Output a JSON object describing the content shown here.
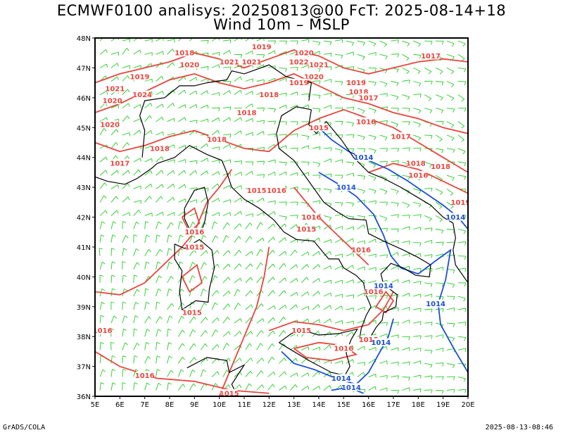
{
  "title_line1": "ECMWF0100 analisys: 20250813@00 FcT: 2025-08-14+18",
  "title_line2": "Wind 10m – MSLP",
  "footer_left": "GrADS/COLA",
  "footer_right": "2025-08-13-08:46",
  "axes": {
    "lon_labels": [
      "5E",
      "6E",
      "7E",
      "8E",
      "9E",
      "10E",
      "11E",
      "12E",
      "13E",
      "14E",
      "15E",
      "16E",
      "17E",
      "18E",
      "19E",
      "20E"
    ],
    "lat_labels": [
      "48N",
      "47N",
      "46N",
      "45N",
      "44N",
      "43N",
      "42N",
      "41N",
      "40N",
      "39N",
      "38N",
      "37N",
      "36N"
    ],
    "lon_range": [
      5,
      20
    ],
    "lat_range": [
      36,
      48
    ]
  },
  "colors": {
    "wind_barbs": "#22cc22",
    "isobar_high": "#e8453c",
    "isobar_low": "#1a4fd6",
    "coastline": "#000000"
  },
  "isobar_labels": [
    {
      "text": "1018",
      "lon": 8.6,
      "lat": 47.5,
      "kind": "high"
    },
    {
      "text": "1019",
      "lon": 11.7,
      "lat": 47.7,
      "kind": "high"
    },
    {
      "text": "1020",
      "lon": 8.8,
      "lat": 47.1,
      "kind": "high"
    },
    {
      "text": "1021",
      "lon": 10.4,
      "lat": 47.2,
      "kind": "high"
    },
    {
      "text": "1021",
      "lon": 11.3,
      "lat": 47.2,
      "kind": "high"
    },
    {
      "text": "1022",
      "lon": 13.2,
      "lat": 47.2,
      "kind": "high"
    },
    {
      "text": "1020",
      "lon": 13.4,
      "lat": 47.5,
      "kind": "high"
    },
    {
      "text": "1021",
      "lon": 14.0,
      "lat": 47.1,
      "kind": "high"
    },
    {
      "text": "1020",
      "lon": 13.8,
      "lat": 46.7,
      "kind": "high"
    },
    {
      "text": "1019",
      "lon": 6.8,
      "lat": 46.7,
      "kind": "high"
    },
    {
      "text": "1021",
      "lon": 5.8,
      "lat": 46.3,
      "kind": "high"
    },
    {
      "text": "1024",
      "lon": 6.9,
      "lat": 46.1,
      "kind": "high"
    },
    {
      "text": "1020",
      "lon": 5.7,
      "lat": 45.9,
      "kind": "high"
    },
    {
      "text": "1018",
      "lon": 12.0,
      "lat": 46.1,
      "kind": "high"
    },
    {
      "text": "1019",
      "lon": 13.2,
      "lat": 46.5,
      "kind": "high"
    },
    {
      "text": "1019",
      "lon": 15.5,
      "lat": 46.5,
      "kind": "high"
    },
    {
      "text": "1018",
      "lon": 15.6,
      "lat": 46.2,
      "kind": "high"
    },
    {
      "text": "1017",
      "lon": 16.0,
      "lat": 46.0,
      "kind": "high"
    },
    {
      "text": "1017",
      "lon": 18.5,
      "lat": 47.4,
      "kind": "high"
    },
    {
      "text": "1018",
      "lon": 11.1,
      "lat": 45.5,
      "kind": "high"
    },
    {
      "text": "1020",
      "lon": 5.6,
      "lat": 45.1,
      "kind": "high"
    },
    {
      "text": "1018",
      "lon": 9.9,
      "lat": 44.6,
      "kind": "high"
    },
    {
      "text": "1018",
      "lon": 7.6,
      "lat": 44.3,
      "kind": "high"
    },
    {
      "text": "1017",
      "lon": 6.0,
      "lat": 43.8,
      "kind": "high"
    },
    {
      "text": "1015",
      "lon": 14.0,
      "lat": 45.0,
      "kind": "high"
    },
    {
      "text": "1016",
      "lon": 15.9,
      "lat": 45.2,
      "kind": "high"
    },
    {
      "text": "1017",
      "lon": 17.3,
      "lat": 44.7,
      "kind": "high"
    },
    {
      "text": "1018",
      "lon": 17.9,
      "lat": 43.8,
      "kind": "high"
    },
    {
      "text": "1018",
      "lon": 18.9,
      "lat": 43.7,
      "kind": "high"
    },
    {
      "text": "1016",
      "lon": 18.0,
      "lat": 43.4,
      "kind": "high"
    },
    {
      "text": "1015",
      "lon": 11.5,
      "lat": 42.9,
      "kind": "high"
    },
    {
      "text": "1016",
      "lon": 12.3,
      "lat": 42.9,
      "kind": "high"
    },
    {
      "text": "1016",
      "lon": 13.7,
      "lat": 42.0,
      "kind": "high"
    },
    {
      "text": "1015",
      "lon": 13.5,
      "lat": 41.6,
      "kind": "high"
    },
    {
      "text": "1016",
      "lon": 9.0,
      "lat": 41.5,
      "kind": "high"
    },
    {
      "text": "1015",
      "lon": 9.0,
      "lat": 41.0,
      "kind": "high"
    },
    {
      "text": "1016",
      "lon": 15.7,
      "lat": 40.9,
      "kind": "high"
    },
    {
      "text": "1016",
      "lon": 16.2,
      "lat": 39.5,
      "kind": "high"
    },
    {
      "text": "1015",
      "lon": 8.9,
      "lat": 38.8,
      "kind": "high"
    },
    {
      "text": "1015",
      "lon": 13.3,
      "lat": 38.2,
      "kind": "high"
    },
    {
      "text": "1016",
      "lon": 15.0,
      "lat": 37.6,
      "kind": "high"
    },
    {
      "text": "1015",
      "lon": 16.0,
      "lat": 37.9,
      "kind": "high"
    },
    {
      "text": "1016",
      "lon": 5.3,
      "lat": 38.2,
      "kind": "high"
    },
    {
      "text": "1019",
      "lon": 19.7,
      "lat": 42.5,
      "kind": "high"
    },
    {
      "text": "1016",
      "lon": 7.0,
      "lat": 36.7,
      "kind": "high"
    },
    {
      "text": "1015",
      "lon": 10.4,
      "lat": 36.1,
      "kind": "high"
    },
    {
      "text": "1014",
      "lon": 15.8,
      "lat": 44.0,
      "kind": "low"
    },
    {
      "text": "1014",
      "lon": 15.1,
      "lat": 43.0,
      "kind": "low"
    },
    {
      "text": "1014",
      "lon": 19.5,
      "lat": 42.0,
      "kind": "low"
    },
    {
      "text": "1014",
      "lon": 16.6,
      "lat": 39.7,
      "kind": "low"
    },
    {
      "text": "1014",
      "lon": 18.7,
      "lat": 39.1,
      "kind": "low"
    },
    {
      "text": "1014",
      "lon": 16.5,
      "lat": 37.8,
      "kind": "low"
    },
    {
      "text": "1014",
      "lon": 14.9,
      "lat": 36.6,
      "kind": "low"
    },
    {
      "text": "1014",
      "lon": 15.3,
      "lat": 36.3,
      "kind": "low"
    }
  ]
}
